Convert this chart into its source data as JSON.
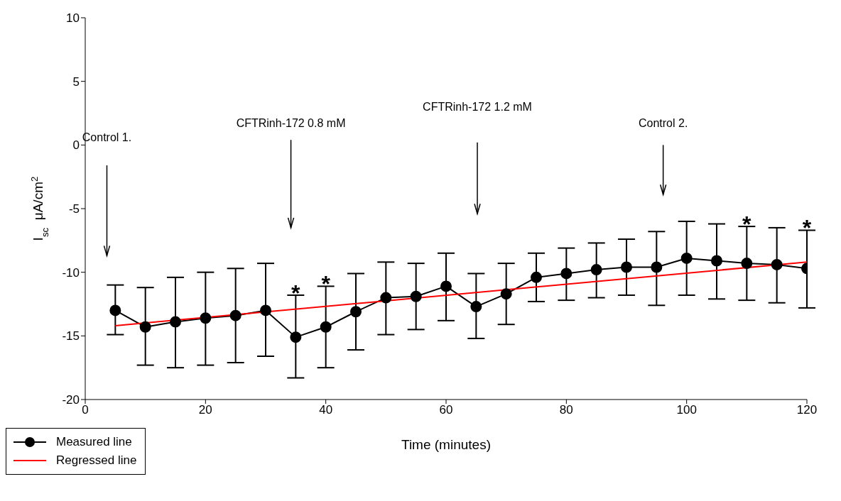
{
  "chart_data": {
    "type": "line",
    "xlabel": "Time (minutes)",
    "ylabel": "I$_{sc}$  μA/cm$^{2}$",
    "xlim": [
      0,
      120
    ],
    "xticks": [
      0,
      20,
      40,
      60,
      80,
      100,
      120
    ],
    "ylim": [
      -20,
      10
    ],
    "yticks": [
      -20,
      -15,
      -10,
      -5,
      0,
      5,
      10
    ],
    "grid": false,
    "legend": "bottom left",
    "line_style": "solid",
    "series": [
      {
        "name": "Measured line",
        "color": "#000000",
        "marker": "circle",
        "x": [
          5,
          10,
          15,
          20,
          25,
          30,
          35,
          40,
          45,
          50,
          55,
          60,
          65,
          70,
          75,
          80,
          85,
          90,
          95,
          100,
          105,
          110,
          115,
          120
        ],
        "values": [
          -13.0,
          -14.3,
          -13.9,
          -13.6,
          -13.4,
          -13.0,
          -15.1,
          -14.3,
          -13.1,
          -12.0,
          -11.9,
          -11.1,
          -12.7,
          -11.7,
          -10.4,
          -10.1,
          -9.8,
          -9.6,
          -9.6,
          -8.9,
          -9.1,
          -9.3,
          -9.4,
          -9.7
        ],
        "errors": [
          [
            -14.9,
            -11.0
          ],
          [
            -17.3,
            -11.2
          ],
          [
            -17.5,
            -10.4
          ],
          [
            -17.3,
            -10.0
          ],
          [
            -17.1,
            -9.7
          ],
          [
            -16.6,
            -9.3
          ],
          [
            -18.3,
            -11.8
          ],
          [
            -17.5,
            -11.1
          ],
          [
            -16.1,
            -10.1
          ],
          [
            -14.9,
            -9.2
          ],
          [
            -14.5,
            -9.3
          ],
          [
            -13.8,
            -8.5
          ],
          [
            -15.2,
            -10.1
          ],
          [
            -14.1,
            -9.3
          ],
          [
            -12.3,
            -8.5
          ],
          [
            -12.2,
            -8.1
          ],
          [
            -12.0,
            -7.7
          ],
          [
            -11.8,
            -7.4
          ],
          [
            -12.6,
            -6.8
          ],
          [
            -11.8,
            -6.0
          ],
          [
            -12.1,
            -6.2
          ],
          [
            -12.2,
            -6.4
          ],
          [
            -12.4,
            -6.5
          ],
          [
            -12.8,
            -6.7
          ]
        ]
      },
      {
        "name": "Regressed line",
        "color": "#ff0000",
        "type": "line",
        "marker": "none",
        "x": [
          5,
          120
        ],
        "values": [
          -14.2,
          -9.2
        ]
      }
    ],
    "annotations": [
      "Control 1.",
      "CFTRinh-172 0.8 mM",
      "CFTRinh-172 1.2 mM",
      "Control 2.",
      {
        "text": "*",
        "x": 35,
        "y": -15.1
      },
      {
        "text": "*",
        "x": 40,
        "y": -14.3
      },
      {
        "text": "*",
        "x": 110,
        "y": -9.3
      },
      {
        "text": "*",
        "x": 120,
        "y": -9.7
      }
    ]
  }
}
